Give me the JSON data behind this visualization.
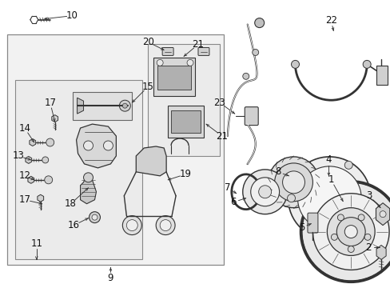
{
  "bg_color": "#ffffff",
  "fig_width": 4.89,
  "fig_height": 3.6,
  "dpi": 100,
  "line_color": "#333333",
  "text_color": "#111111",
  "box_fill": "#f0f0f0",
  "inner_fill": "#e8e8e8"
}
